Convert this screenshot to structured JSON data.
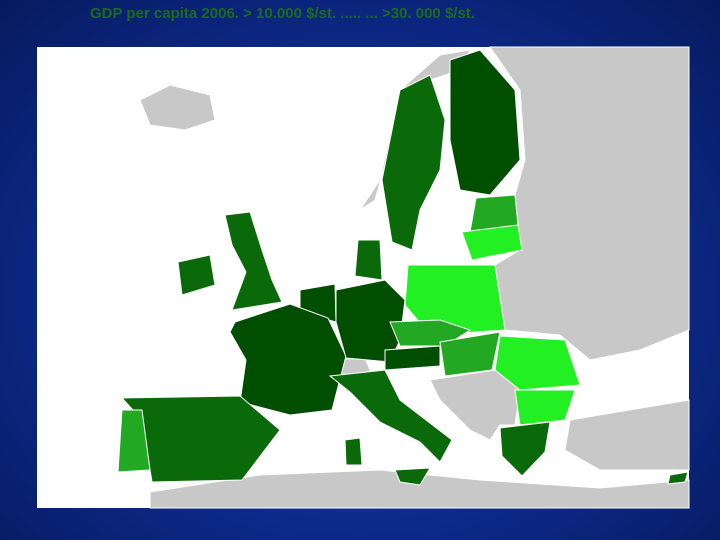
{
  "title": "GDP per capita 2006. > 10.000 $/st. ..... ... >30. 000 $/st."
}
